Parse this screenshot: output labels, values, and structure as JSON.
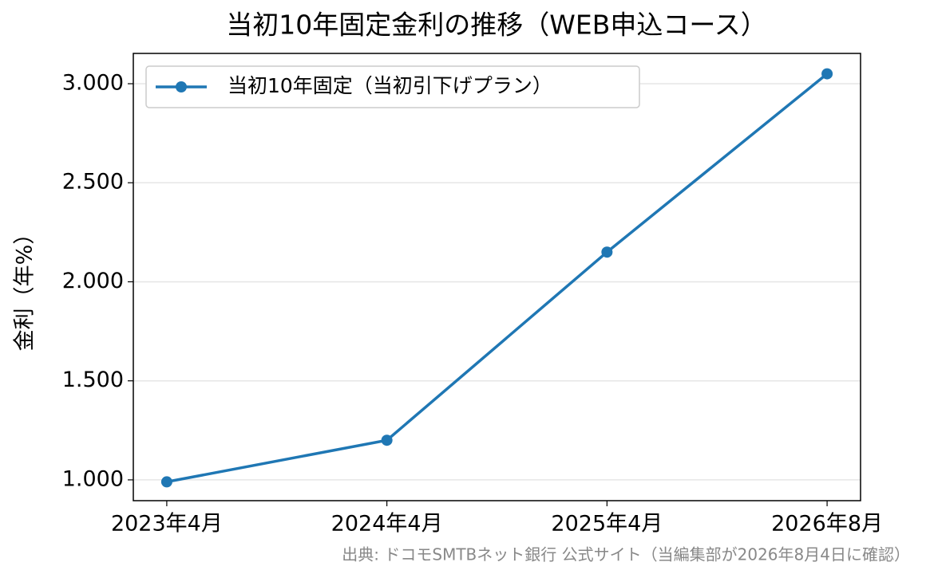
{
  "chart_data": {
    "type": "line",
    "title": "当初10年固定金利の推移（WEB申込コース）",
    "y_label": "金利（年%）",
    "source": "出典: ドコモSMTBネット銀行 公式サイト（当編集部が2026年8月4日に確認）",
    "categories": [
      "2023年4月",
      "2024年4月",
      "2025年4月",
      "2026年8月"
    ],
    "series": [
      {
        "name": "当初10年固定（当初引下げプラン）",
        "color": "#1f77b4",
        "values": [
          0.99,
          1.2,
          2.15,
          3.05
        ]
      }
    ],
    "ylim": [
      0.895,
      3.153
    ],
    "yticks": [
      {
        "value": 1,
        "label": "1.000"
      },
      {
        "value": 1.5,
        "label": "1.500"
      },
      {
        "value": 2,
        "label": "2.000"
      },
      {
        "value": 2.5,
        "label": "2.500"
      },
      {
        "value": 3,
        "label": "3.000"
      }
    ],
    "grid": true,
    "legend": "upper left"
  }
}
